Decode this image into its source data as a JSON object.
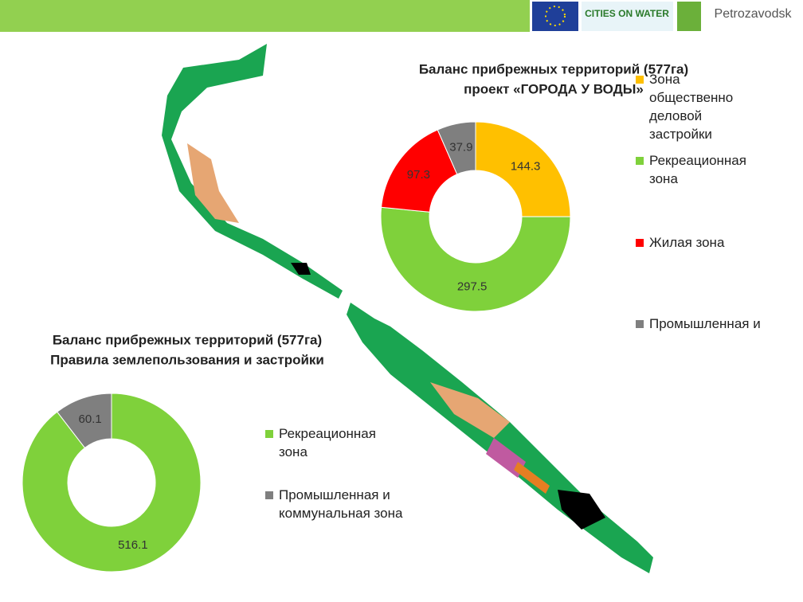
{
  "header": {
    "logo_texts": [
      "CITIES ON WATER",
      "Petrozavodsk"
    ]
  },
  "chart_data": [
    {
      "type": "donut",
      "title": "Баланс прибрежных территорий (577га)",
      "subtitle": "проект «ГОРОДА У ВОДЫ»",
      "categories": [
        "Зона общественно деловой застройки",
        "Рекреационная зона",
        "Жилая зона",
        "Промышленная и"
      ],
      "values": [
        144.3,
        297.5,
        97.3,
        37.9
      ],
      "colors": [
        "#ffc000",
        "#7fd13b",
        "#ff0000",
        "#7f7f7f"
      ]
    },
    {
      "type": "donut",
      "title": "Баланс прибрежных территорий (577га)",
      "subtitle": "Правила землепользования и застройки",
      "categories": [
        "Рекреационная зона",
        "Промышленная и коммунальная зона"
      ],
      "values": [
        516.1,
        60.1
      ],
      "colors": [
        "#7fd13b",
        "#7f7f7f"
      ]
    }
  ]
}
